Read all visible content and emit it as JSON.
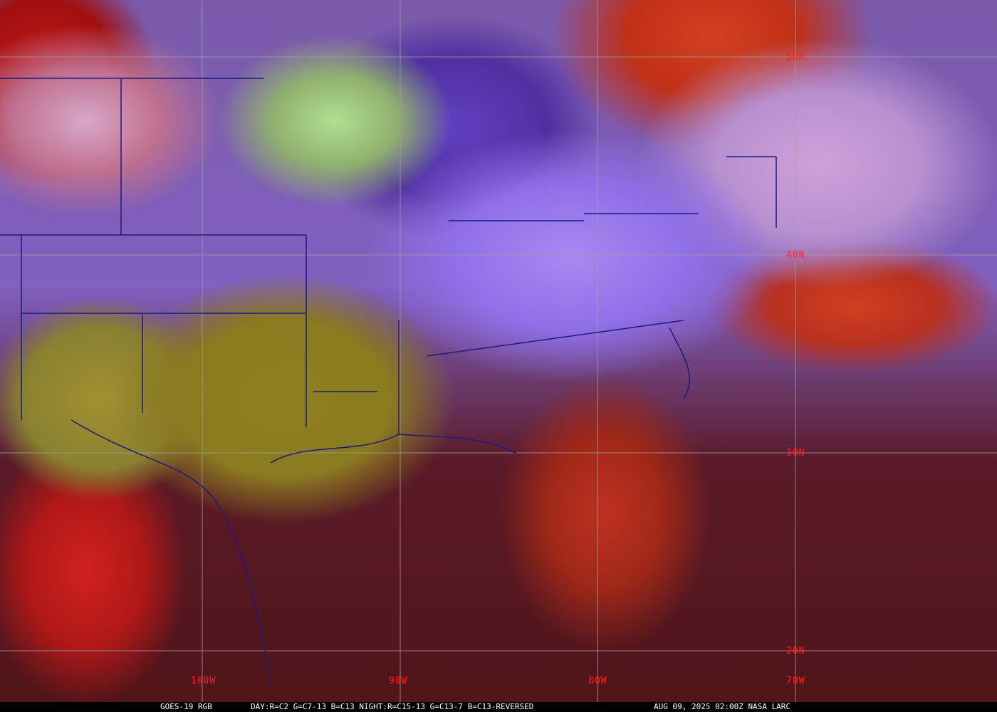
{
  "map": {
    "latitude_labels": [
      "50N",
      "40N",
      "30N",
      "20N"
    ],
    "longitude_labels": [
      "100W",
      "90W",
      "80W",
      "70W"
    ],
    "grid_color": "#a0a0a0",
    "label_color": "#ff2020",
    "border_color": "#1a1a80"
  },
  "caption": {
    "product": "GOES-19 RGB",
    "recipe": "DAY:R=C2 G=C7-13 B=C13 NIGHT:R=C15-13 G=C13-7 B=C13-REVERSED",
    "timestamp": "AUG 09, 2025 02:00Z NASA LARC"
  }
}
